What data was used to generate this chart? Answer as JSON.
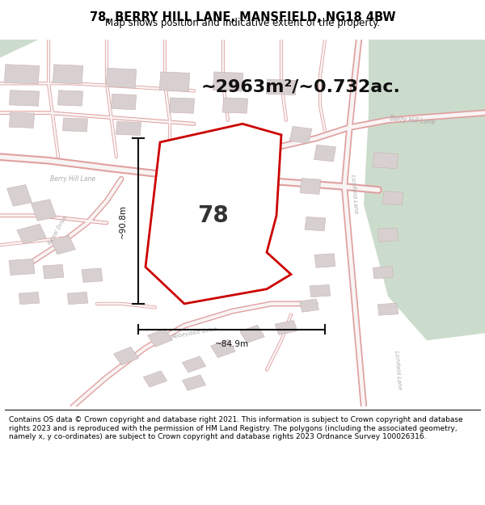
{
  "title": "78, BERRY HILL LANE, MANSFIELD, NG18 4BW",
  "subtitle": "Map shows position and indicative extent of the property.",
  "area_text": "~2963m²/~0.732ac.",
  "dim_width": "~84.9m",
  "dim_height": "~90.8m",
  "label_78": "78",
  "footer": "Contains OS data © Crown copyright and database right 2021. This information is subject to Crown copyright and database rights 2023 and is reproduced with the permission of HM Land Registry. The polygons (including the associated geometry, namely x, y co-ordinates) are subject to Crown copyright and database rights 2023 Ordnance Survey 100026316.",
  "map_bg": "#f7f2f2",
  "road_color": "#e8b4b4",
  "green_area": "#ccdccc",
  "property_fill": "#ffffff",
  "property_outline": "#cc0000",
  "dim_line_color": "#111111",
  "building_fill": "#d8d0d0",
  "building_outline": "#c8b0b0",
  "title_fontsize": 10.5,
  "subtitle_fontsize": 8.5,
  "area_fontsize": 16,
  "label_fontsize": 20,
  "footer_fontsize": 6.5
}
